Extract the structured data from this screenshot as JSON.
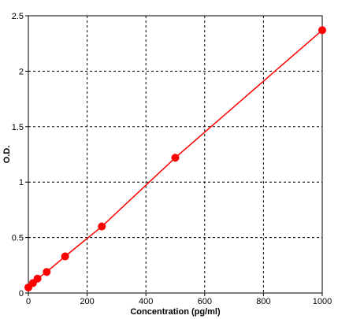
{
  "chart_data": {
    "type": "line",
    "title": "",
    "xlabel": "Concentration (pg/ml)",
    "ylabel": "O.D.",
    "xlim": [
      0,
      1000
    ],
    "ylim": [
      0,
      2.5
    ],
    "x_ticks": [
      0,
      200,
      400,
      600,
      800,
      1000
    ],
    "y_ticks": [
      0,
      0.5,
      1,
      1.5,
      2,
      2.5
    ],
    "x_tick_labels": [
      "0",
      "200",
      "400",
      "600",
      "800",
      "1000"
    ],
    "y_tick_labels": [
      "0",
      "0.5",
      "1",
      "1.5",
      "2",
      "2.5"
    ],
    "grid": true,
    "grid_style": "dashed",
    "legend": "none",
    "series": [
      {
        "color": "#ff0000",
        "marker": "circle",
        "points": [
          {
            "x": 0,
            "y": 0.05
          },
          {
            "x": 15.6,
            "y": 0.09
          },
          {
            "x": 31.2,
            "y": 0.13
          },
          {
            "x": 62.5,
            "y": 0.19
          },
          {
            "x": 125,
            "y": 0.33
          },
          {
            "x": 250,
            "y": 0.6
          },
          {
            "x": 500,
            "y": 1.22
          },
          {
            "x": 1000,
            "y": 2.37
          }
        ]
      }
    ]
  }
}
